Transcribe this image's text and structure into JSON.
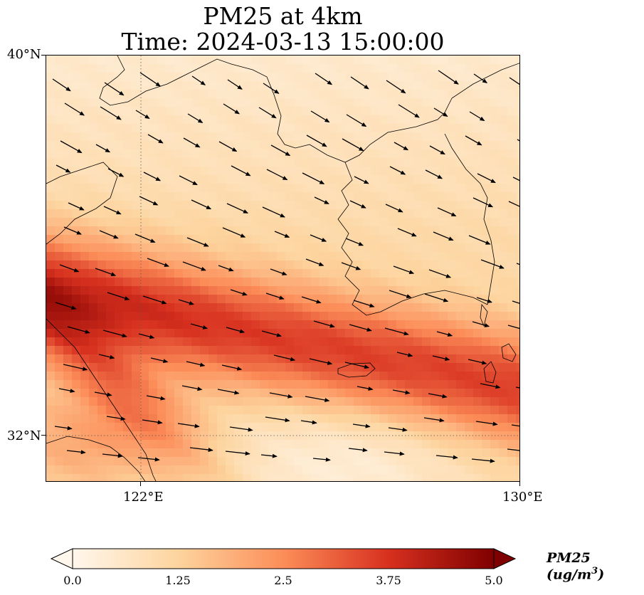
{
  "title": {
    "line1": "PM25 at 4km",
    "line2": "Time: 2024-03-13 15:00:00"
  },
  "axes": {
    "lat_ticks": [
      {
        "label": "40°N",
        "value": 40
      },
      {
        "label": "32°N",
        "value": 32
      }
    ],
    "lon_ticks": [
      {
        "label": "122°E",
        "value": 122
      },
      {
        "label": "130°E",
        "value": 130
      }
    ],
    "lon_range": [
      120,
      130
    ],
    "lat_range": [
      31,
      40
    ],
    "gridlines": "dotted at 122°E and 32°N"
  },
  "colorbar": {
    "label": "PM25 (ug/m",
    "label_sup": "3",
    "label_end": ")",
    "ticks": [
      "0.0",
      "1.25",
      "2.5",
      "3.75",
      "5.0"
    ],
    "range": [
      0.0,
      5.0
    ],
    "colormap": "OrRd",
    "extend": "both",
    "colors": [
      "#fff7ec",
      "#fdd49e",
      "#fc8d59",
      "#d7301f",
      "#7f0000"
    ]
  },
  "map": {
    "variable": "PM25",
    "layers": [
      "pm25 field",
      "wind vectors",
      "coastlines"
    ],
    "field_description": "Elevated PM25 band oriented WNW-ESE across the Yellow Sea; lower values in the north and southeast"
  }
}
